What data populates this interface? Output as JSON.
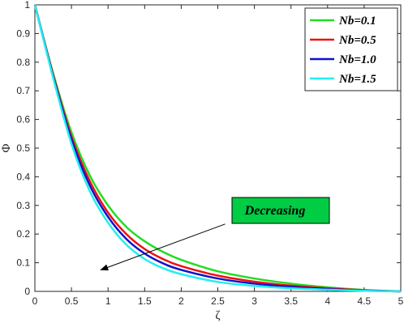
{
  "chart_data": {
    "type": "line",
    "xlabel": "ζ",
    "ylabel": "Φ",
    "xlim": [
      0,
      5
    ],
    "ylim": [
      0,
      1
    ],
    "xticks": [
      "0",
      "0.5",
      "1",
      "1.5",
      "2",
      "2.5",
      "3",
      "3.5",
      "4",
      "4.5",
      "5"
    ],
    "yticks": [
      "0",
      "0.1",
      "0.2",
      "0.3",
      "0.4",
      "0.5",
      "0.6",
      "0.7",
      "0.8",
      "0.9",
      "1"
    ],
    "grid": false,
    "legend_position": "top-right",
    "x": [
      0,
      0.25,
      0.5,
      0.75,
      1.0,
      1.25,
      1.5,
      1.75,
      2.0,
      2.5,
      3.0,
      3.5,
      4.0,
      4.5,
      5.0
    ],
    "series": [
      {
        "name": "Nb=0.1",
        "color": "#22dd22",
        "values": [
          1.0,
          0.76,
          0.555,
          0.405,
          0.3,
          0.225,
          0.175,
          0.138,
          0.11,
          0.07,
          0.045,
          0.027,
          0.014,
          0.005,
          0.0
        ]
      },
      {
        "name": "Nb=0.5",
        "color": "#ee1111",
        "values": [
          1.0,
          0.755,
          0.54,
          0.385,
          0.275,
          0.2,
          0.148,
          0.113,
          0.088,
          0.055,
          0.034,
          0.02,
          0.011,
          0.004,
          0.0
        ]
      },
      {
        "name": "Nb=1.0",
        "color": "#1111cc",
        "values": [
          1.0,
          0.75,
          0.53,
          0.37,
          0.26,
          0.183,
          0.132,
          0.098,
          0.075,
          0.045,
          0.027,
          0.016,
          0.008,
          0.003,
          0.0
        ]
      },
      {
        "name": "Nb=1.5",
        "color": "#22eeee",
        "values": [
          1.0,
          0.745,
          0.515,
          0.35,
          0.24,
          0.163,
          0.113,
          0.081,
          0.06,
          0.033,
          0.019,
          0.011,
          0.006,
          0.002,
          0.0
        ]
      }
    ],
    "annotation": {
      "text": "Decreasing",
      "box_color": "#00cc44",
      "arrow_from": [
        2.6,
        0.235
      ],
      "arrow_to": [
        0.9,
        0.075
      ]
    }
  }
}
